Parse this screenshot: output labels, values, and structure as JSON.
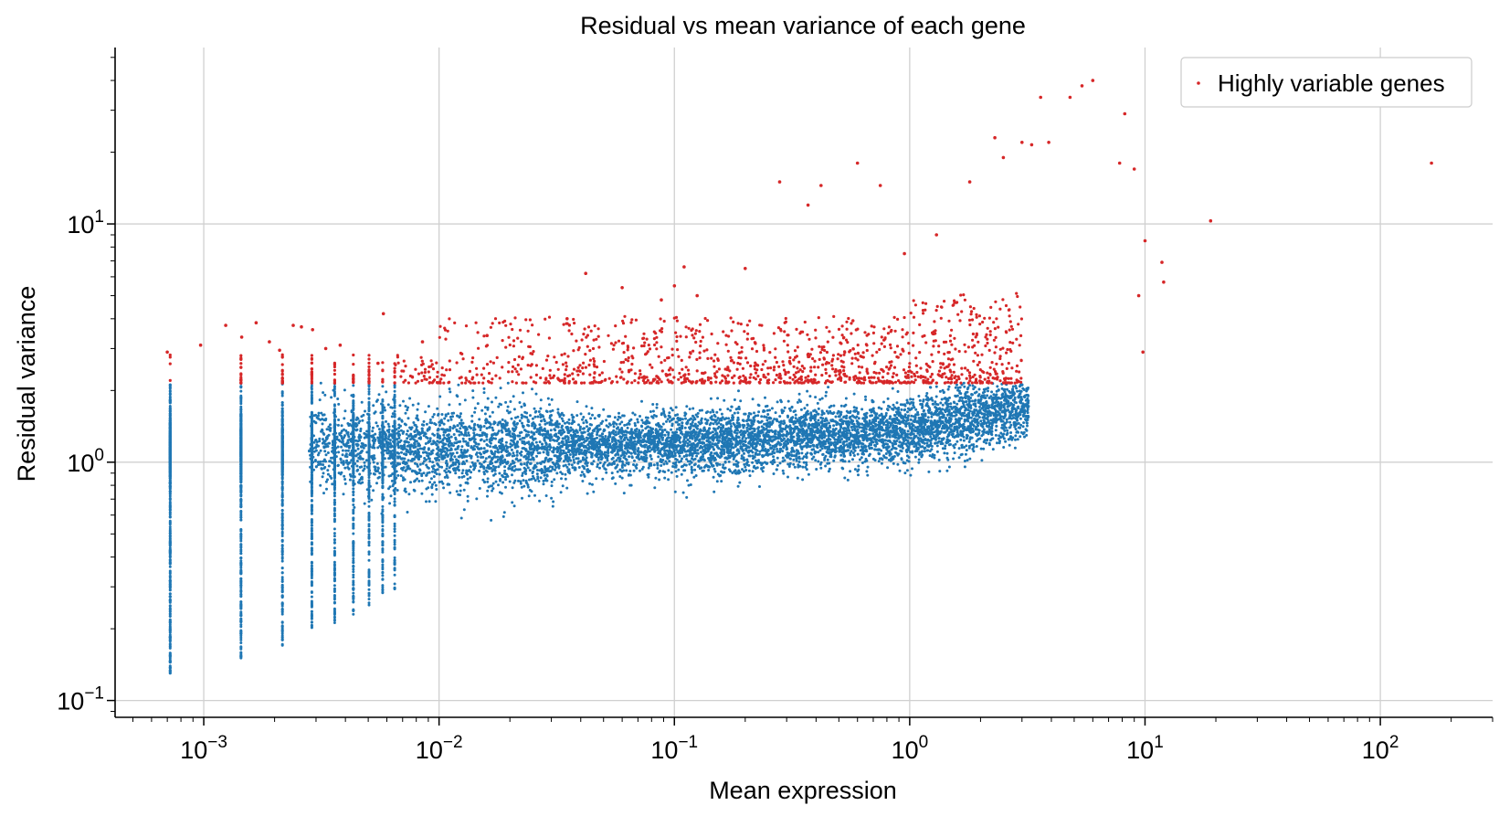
{
  "chart_data": {
    "type": "scatter",
    "title": "Residual vs mean variance of each gene",
    "xlabel": "Mean expression",
    "ylabel": "Residual variance",
    "x_scale": "log",
    "y_scale": "log",
    "xlim": [
      0.00042,
      300
    ],
    "ylim": [
      0.085,
      55
    ],
    "grid": true,
    "legend": {
      "position": "top-right",
      "entries": [
        "Highly variable genes"
      ]
    },
    "x_ticks": [
      {
        "base": "10",
        "exp": "−3",
        "value": 0.001
      },
      {
        "base": "10",
        "exp": "−2",
        "value": 0.01
      },
      {
        "base": "10",
        "exp": "−1",
        "value": 0.1
      },
      {
        "base": "10",
        "exp": "0",
        "value": 1
      },
      {
        "base": "10",
        "exp": "1",
        "value": 10
      },
      {
        "base": "10",
        "exp": "2",
        "value": 100
      }
    ],
    "y_ticks": [
      {
        "base": "10",
        "exp": "−1",
        "value": 0.1
      },
      {
        "base": "10",
        "exp": "0",
        "value": 1
      },
      {
        "base": "10",
        "exp": "1",
        "value": 10
      }
    ],
    "hvg_threshold": 2.15,
    "series": [
      {
        "name": "",
        "color": "#1f77b4",
        "description_points": "genes with residual variance below threshold",
        "trend": {
          "x": [
            0.0007,
            0.001,
            0.01,
            0.1,
            1,
            3
          ],
          "y_center": [
            1.2,
            1.2,
            1.15,
            1.2,
            1.35,
            1.7
          ]
        }
      },
      {
        "name": "Highly variable genes",
        "color": "#d62728",
        "points": [
          [
            0.0007,
            2.9
          ],
          [
            0.00097,
            3.1
          ],
          [
            0.00124,
            3.75
          ],
          [
            0.00145,
            3.35
          ],
          [
            0.00167,
            3.85
          ],
          [
            0.0019,
            3.2
          ],
          [
            0.0021,
            2.95
          ],
          [
            0.0024,
            3.75
          ],
          [
            0.0026,
            3.7
          ],
          [
            0.0029,
            3.6
          ],
          [
            0.0033,
            3.0
          ],
          [
            0.0038,
            3.1
          ],
          [
            0.0055,
            2.6
          ],
          [
            0.0058,
            4.2
          ],
          [
            0.0085,
            3.2
          ],
          [
            0.016,
            3.4
          ],
          [
            0.035,
            4.0
          ],
          [
            0.042,
            6.2
          ],
          [
            0.06,
            5.4
          ],
          [
            0.088,
            4.8
          ],
          [
            0.1,
            5.5
          ],
          [
            0.11,
            6.6
          ],
          [
            0.125,
            5.0
          ],
          [
            0.2,
            6.5
          ],
          [
            0.28,
            15.0
          ],
          [
            0.37,
            12.0
          ],
          [
            0.42,
            14.5
          ],
          [
            0.6,
            18.0
          ],
          [
            0.75,
            14.5
          ],
          [
            0.95,
            7.5
          ],
          [
            1.3,
            9.0
          ],
          [
            1.8,
            15.0
          ],
          [
            2.3,
            23.0
          ],
          [
            2.5,
            19.0
          ],
          [
            3.0,
            22.0
          ],
          [
            3.3,
            21.5
          ],
          [
            3.6,
            34.0
          ],
          [
            3.9,
            22.0
          ],
          [
            4.8,
            34.0
          ],
          [
            5.4,
            38.0
          ],
          [
            6.0,
            40.0
          ],
          [
            7.8,
            18.0
          ],
          [
            8.2,
            29.0
          ],
          [
            9.0,
            17.0
          ],
          [
            9.4,
            5.0
          ],
          [
            9.8,
            2.9
          ],
          [
            10.0,
            8.5
          ],
          [
            11.8,
            6.9
          ],
          [
            12.0,
            5.7
          ],
          [
            19.0,
            10.3
          ],
          [
            165,
            18.0
          ]
        ]
      }
    ]
  }
}
